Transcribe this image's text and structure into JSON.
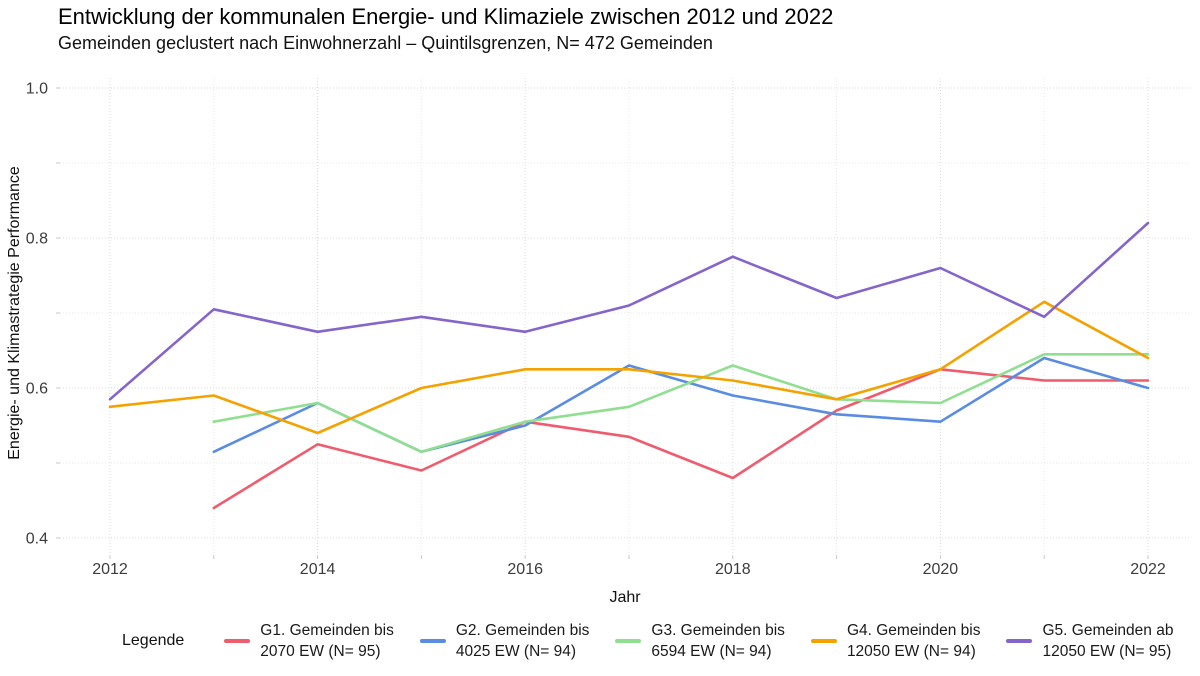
{
  "header": {
    "title": "Entwicklung der kommunalen Energie- und Klimaziele zwischen 2012 und 2022",
    "subtitle": "Gemeinden geclustert nach Einwohnerzahl – Quintilsgrenzen, N= 472 Gemeinden"
  },
  "chart_data": {
    "type": "line",
    "title": "Entwicklung der kommunalen Energie- und Klimaziele zwischen 2012 und 2022",
    "subtitle": "Gemeinden geclustert nach Einwohnerzahl – Quintilsgrenzen, N= 472 Gemeinden",
    "xlabel": "Jahr",
    "ylabel": "Energie- und Klimastrategie Performance",
    "x": [
      2012,
      2013,
      2014,
      2015,
      2016,
      2017,
      2018,
      2019,
      2020,
      2021,
      2022
    ],
    "xtick_years": [
      2012,
      2014,
      2016,
      2018,
      2020,
      2022
    ],
    "x_tick_labels": [
      "2012",
      "2014",
      "2016",
      "2018",
      "2020",
      "2022"
    ],
    "yticks_major": [
      0.4,
      0.6,
      0.8,
      1.0
    ],
    "yticks_minor": [
      0.5,
      0.7,
      0.9
    ],
    "y_tick_labels": [
      "0.4",
      "0.6",
      "0.8",
      "1.0"
    ],
    "ylim": [
      0.4,
      1.0
    ],
    "grid": "dotted light-gray major and minor, white background",
    "legend_position": "bottom",
    "series": [
      {
        "id": "g1",
        "name": "G1. Gemeinden bis 2070 EW (N= 95)",
        "color": "#EE5C6D",
        "values": [
          null,
          0.44,
          0.525,
          0.49,
          0.555,
          0.535,
          0.48,
          0.57,
          0.625,
          0.61,
          0.61
        ]
      },
      {
        "id": "g2",
        "name": "G2. Gemeinden bis 4025 EW (N= 94)",
        "color": "#5A8CE2",
        "values": [
          null,
          0.515,
          0.58,
          0.515,
          0.55,
          0.63,
          0.59,
          0.565,
          0.555,
          0.64,
          0.6
        ]
      },
      {
        "id": "g3",
        "name": "G3. Gemeinden bis 6594 EW (N= 94)",
        "color": "#90DE90",
        "values": [
          null,
          0.555,
          0.58,
          0.515,
          0.555,
          0.575,
          0.63,
          0.585,
          0.58,
          0.645,
          0.645
        ]
      },
      {
        "id": "g4",
        "name": "G4. Gemeinden bis 12050 EW (N= 94)",
        "color": "#F3A200",
        "values": [
          0.575,
          0.59,
          0.54,
          0.6,
          0.625,
          0.625,
          0.61,
          0.585,
          0.625,
          0.715,
          0.64
        ]
      },
      {
        "id": "g5",
        "name": "G5. Gemeinden ab 12050 EW (N= 95)",
        "color": "#8565C9",
        "values": [
          0.585,
          0.705,
          0.675,
          0.695,
          0.675,
          0.71,
          0.775,
          0.72,
          0.76,
          0.695,
          0.82
        ]
      }
    ]
  },
  "legend": {
    "title": "Legende",
    "entries": [
      {
        "line1": "G1. Gemeinden bis",
        "line2": "2070 EW (N= 95)",
        "color": "#EE5C6D"
      },
      {
        "line1": "G2. Gemeinden bis",
        "line2": "4025 EW (N= 94)",
        "color": "#5A8CE2"
      },
      {
        "line1": "G3. Gemeinden bis",
        "line2": "6594 EW (N= 94)",
        "color": "#90DE90"
      },
      {
        "line1": "G4. Gemeinden bis",
        "line2": "12050 EW (N= 94)",
        "color": "#F3A200"
      },
      {
        "line1": "G5. Gemeinden ab",
        "line2": "12050 EW  (N= 95)",
        "color": "#8565C9"
      }
    ]
  },
  "colors": {
    "grid_major": "#DBDBDB",
    "grid_minor": "#E9E9E9",
    "tick": "#C8C8C8",
    "tick_label": "#3c3c3c",
    "axis_title": "#111111"
  }
}
